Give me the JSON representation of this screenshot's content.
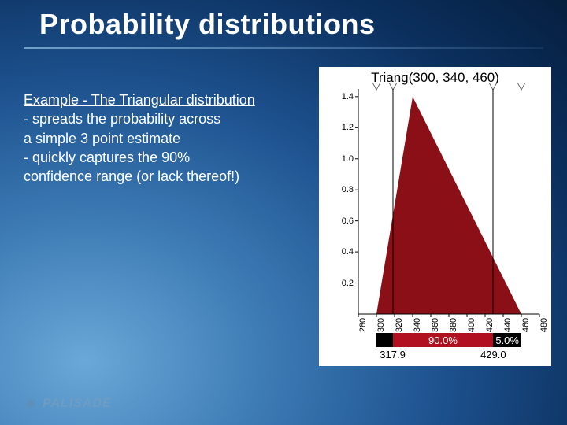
{
  "title": "Probability distributions",
  "body": {
    "line1_u": "Example - The Triangular distribution",
    "line2": "- spreads the probability across",
    "line3": "a simple 3 point estimate",
    "line4": "- quickly captures the 90%",
    "line5": " confidence range (or lack thereof!)"
  },
  "logo_text": "PALISADE",
  "chart": {
    "title": "Triang(300, 340, 460)",
    "type": "triangular-pdf",
    "panel_bg": "#ffffff",
    "fill_color": "#8a0f16",
    "axis_color": "#000000",
    "xmin": 280,
    "xmax": 480,
    "ymin": 0,
    "ymax": 1.45,
    "tri_min": 300,
    "tri_mode": 340,
    "tri_max": 460,
    "peak_y": 1.4,
    "yticks": [
      0.2,
      0.4,
      0.6,
      0.8,
      1.0,
      1.2,
      1.4
    ],
    "xticks": [
      280,
      300,
      320,
      340,
      360,
      380,
      400,
      420,
      440,
      460,
      480
    ],
    "markers_x": [
      300,
      317.9,
      429.0,
      460
    ],
    "marker_fill": "#ffffff",
    "marker_stroke": "#666666",
    "slider_x": [
      317.9,
      429.0
    ],
    "confidence_segments": [
      {
        "from_x": 300,
        "to_x": 317.9,
        "pct": "",
        "bg": "#000000",
        "fg": "#ffffff",
        "show_label": false
      },
      {
        "from_x": 317.9,
        "to_x": 429.0,
        "pct": "90.0%",
        "bg": "#b01020",
        "fg": "#ffffff",
        "show_label": true
      },
      {
        "from_x": 429.0,
        "to_x": 460,
        "pct": "5.0%",
        "bg": "#000000",
        "fg": "#ffffff",
        "show_label": true
      }
    ],
    "confidence_values": [
      317.9,
      429.0
    ]
  }
}
